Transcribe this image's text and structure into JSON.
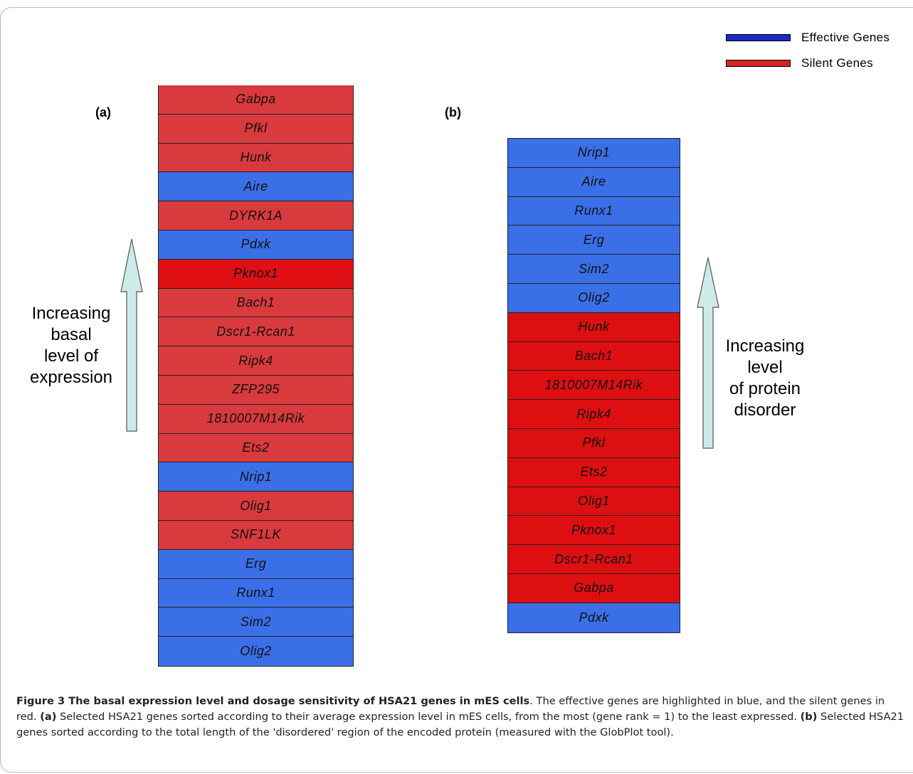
{
  "legend": {
    "effective": {
      "label": "Effective Genes",
      "color": "#1c28c6"
    },
    "silent": {
      "label": "Silent Genes",
      "color": "#d42424"
    }
  },
  "colors": {
    "blue": "#3b6fe8",
    "red_a": "#d93a3e",
    "red_b": "#de0f10",
    "pknox1_a": "#e01014"
  },
  "panel_a": {
    "label": "(a)",
    "arrow_text": [
      "Increasing",
      "basal",
      "level of",
      "expression"
    ],
    "genes": [
      {
        "name": "Gabpa",
        "type": "silent"
      },
      {
        "name": "Pfkl",
        "type": "silent"
      },
      {
        "name": "Hunk",
        "type": "silent"
      },
      {
        "name": "Aire",
        "type": "effective"
      },
      {
        "name": "DYRK1A",
        "type": "silent"
      },
      {
        "name": "Pdxk",
        "type": "effective"
      },
      {
        "name": "Pknox1",
        "type": "silent",
        "accent": true
      },
      {
        "name": "Bach1",
        "type": "silent"
      },
      {
        "name": "Dscr1-Rcan1",
        "type": "silent"
      },
      {
        "name": "Ripk4",
        "type": "silent"
      },
      {
        "name": "ZFP295",
        "type": "silent"
      },
      {
        "name": "1810007M14Rik",
        "type": "silent"
      },
      {
        "name": "Ets2",
        "type": "silent"
      },
      {
        "name": "Nrip1",
        "type": "effective"
      },
      {
        "name": "Olig1",
        "type": "silent"
      },
      {
        "name": "SNF1LK",
        "type": "silent"
      },
      {
        "name": "Erg",
        "type": "effective"
      },
      {
        "name": "Runx1",
        "type": "effective"
      },
      {
        "name": "Sim2",
        "type": "effective"
      },
      {
        "name": "Olig2",
        "type": "effective"
      }
    ]
  },
  "panel_b": {
    "label": "(b)",
    "arrow_text": [
      "Increasing",
      "level",
      "of protein",
      "disorder"
    ],
    "genes": [
      {
        "name": "Nrip1",
        "type": "effective"
      },
      {
        "name": "Aire",
        "type": "effective"
      },
      {
        "name": "Runx1",
        "type": "effective"
      },
      {
        "name": "Erg",
        "type": "effective"
      },
      {
        "name": "Sim2",
        "type": "effective"
      },
      {
        "name": "Olig2",
        "type": "effective"
      },
      {
        "name": "Hunk",
        "type": "silent"
      },
      {
        "name": "Bach1",
        "type": "silent"
      },
      {
        "name": "1810007M14Rik",
        "type": "silent"
      },
      {
        "name": "Ripk4",
        "type": "silent"
      },
      {
        "name": "Pfkl",
        "type": "silent"
      },
      {
        "name": "Ets2",
        "type": "silent"
      },
      {
        "name": "Olig1",
        "type": "silent"
      },
      {
        "name": "Pknox1",
        "type": "silent"
      },
      {
        "name": "Dscr1-Rcan1",
        "type": "silent"
      },
      {
        "name": "Gabpa",
        "type": "silent"
      },
      {
        "name": "Pdxk",
        "type": "effective"
      }
    ]
  },
  "caption": {
    "title": "Figure 3 The basal expression level and dosage sensitivity of HSA21 genes in mES cells",
    "intro": ". The effective genes are highlighted in blue, and the silent genes in red. ",
    "a_label": "(a)",
    "a_text": " Selected HSA21 genes sorted according to their average expression level in mES cells, from the most (gene rank = 1) to the least expressed. ",
    "b_label": "(b)",
    "b_text": " Selected HSA21 genes sorted according to the total length of the 'disordered' region of the encoded protein (measured with the GlobPlot tool)."
  }
}
